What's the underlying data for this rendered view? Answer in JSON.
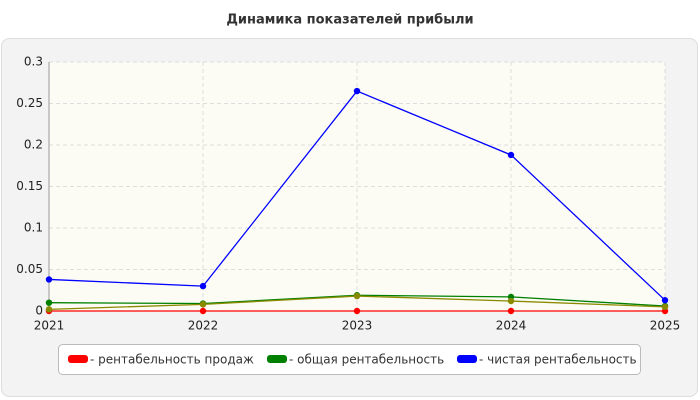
{
  "chart_data": {
    "type": "line",
    "title": "Динамика показателей прибыли",
    "x": [
      2021,
      2022,
      2023,
      2024,
      2025
    ],
    "xlim": [
      2021,
      2025
    ],
    "xticks": [
      2021,
      2022,
      2023,
      2024,
      2025
    ],
    "ylim": [
      0,
      0.3
    ],
    "yticks": [
      0,
      0.05,
      0.1,
      0.15,
      0.2,
      0.25,
      0.3
    ],
    "grid": true,
    "legend": "bottom",
    "series": [
      {
        "name": "- рентабельность продаж",
        "color": "#ff0000",
        "values": [
          0,
          0,
          0,
          0,
          0
        ]
      },
      {
        "name": "- общая рентабельность",
        "color": "#008000",
        "values": [
          0.01,
          0.009,
          0.019,
          0.017,
          0.006
        ]
      },
      {
        "name": "- чистая рентабельность",
        "color": "#0000ff",
        "values": [
          0.038,
          0.03,
          0.265,
          0.188,
          0.013
        ]
      },
      {
        "color": "#8a8a00",
        "values": [
          0.002,
          0.008,
          0.018,
          0.012,
          0.005
        ]
      }
    ]
  }
}
